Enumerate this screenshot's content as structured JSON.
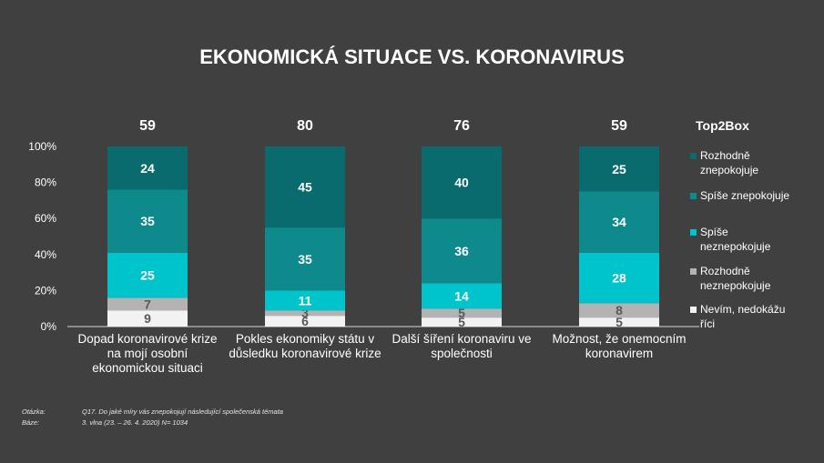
{
  "title": "EKONOMICKÁ SITUACE VS. KORONAVIRUS",
  "legend_title": "Top2Box",
  "colors": {
    "background": "#404040",
    "rozhodne_znepokojuje": "#0a6b6e",
    "spise_znepokojuje": "#0f8a8c",
    "spise_neznepokojuje": "#00c4cc",
    "rozhodne_neznepokojuje": "#b3b3b3",
    "nevim": "#f2f2f2"
  },
  "chart_data": {
    "type": "bar",
    "stacked": true,
    "categories": [
      [
        "Dopad koronavirové krize",
        "na mojí osobní",
        "ekonomickou situaci"
      ],
      [
        "Pokles ekonomiky státu v",
        "důsledku koronavirové krize"
      ],
      [
        "Další šíření koronaviru ve",
        "společnosti"
      ],
      [
        "Možnost, že onemocním",
        "koronavirem"
      ]
    ],
    "top2box": [
      59,
      80,
      76,
      59
    ],
    "series": [
      {
        "name": "Nevím, nedokážu říci",
        "values": [
          9,
          6,
          5,
          5
        ],
        "color": "#f2f2f2",
        "label_color": "#595959"
      },
      {
        "name": "Rozhodně neznepokojuje",
        "values": [
          7,
          3,
          5,
          8
        ],
        "color": "#b3b3b3",
        "label_color": "#595959"
      },
      {
        "name": "Spíše neznepokojuje",
        "values": [
          25,
          11,
          14,
          28
        ],
        "color": "#00c4cc",
        "label_color": "#ffffff"
      },
      {
        "name": "Spíše znepokojuje",
        "values": [
          35,
          35,
          36,
          34
        ],
        "color": "#0f8a8c",
        "label_color": "#ffffff"
      },
      {
        "name": "Rozhodně znepokojuje",
        "values": [
          24,
          45,
          40,
          25
        ],
        "color": "#0a6b6e",
        "label_color": "#ffffff"
      }
    ],
    "ylim": [
      0,
      100
    ],
    "yticks": [
      "0%",
      "20%",
      "40%",
      "60%",
      "80%",
      "100%"
    ],
    "grid": false,
    "legend_position": "right"
  },
  "legend": [
    {
      "lines": [
        "Rozhodně",
        "znepokojuje"
      ],
      "color": "#0a6b6e"
    },
    {
      "lines": [
        "Spíše znepokojuje"
      ],
      "color": "#0f8a8c"
    },
    {
      "lines": [
        "Spíše",
        "neznepokojuje"
      ],
      "color": "#00c4cc"
    },
    {
      "lines": [
        "Rozhodně",
        "neznepokojuje"
      ],
      "color": "#b3b3b3"
    },
    {
      "lines": [
        "Nevím, nedokážu",
        "říci"
      ],
      "color": "#f2f2f2"
    }
  ],
  "footer": {
    "question_label": "Otázka:",
    "question_text": "Q17.  Do jaké míry vás znepokojují následující společenská témata",
    "base_label": "Báze:",
    "base_text": "3. vlna (23. – 26. 4. 2020) N= 1034"
  }
}
